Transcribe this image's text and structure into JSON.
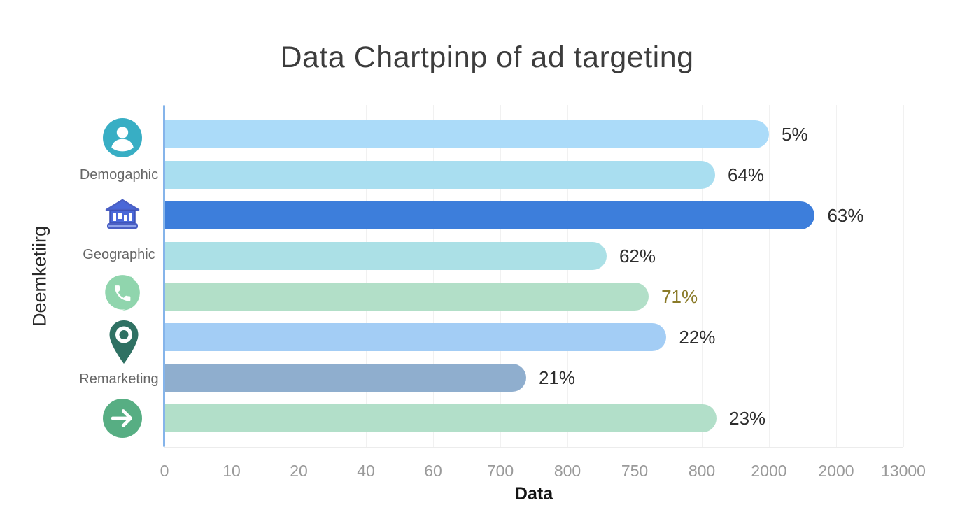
{
  "title": "Data Chartpinp of ad targeting",
  "y_axis_label": "Deemketiirg",
  "x_axis_label": "Data",
  "category_labels": [
    {
      "label": "Demogaphic"
    },
    {
      "label": "Geographic"
    },
    {
      "label": "Remarketing"
    }
  ],
  "icons": [
    {
      "name": "person-icon",
      "color": "#38aec4"
    },
    {
      "name": "bank-icon",
      "color": "#4a68d8"
    },
    {
      "name": "phone-chat-icon",
      "color": "#90d5ad"
    },
    {
      "name": "location-pin-icon",
      "color": "#2f7163"
    },
    {
      "name": "arrow-right-icon",
      "color": "#57ae83"
    }
  ],
  "chart_data": {
    "type": "bar",
    "orientation": "horizontal",
    "title": "Data Chartpinp of ad targeting",
    "xlabel": "Data",
    "ylabel": "Deemketiirg",
    "grid": true,
    "axis_line_color": "#85b4ea",
    "x_tick_labels": [
      "0",
      "10",
      "20",
      "40",
      "60",
      "700",
      "800",
      "750",
      "800",
      "2000",
      "2000",
      "13000"
    ],
    "bars": [
      {
        "value_label": "5%",
        "length_frac": 0.819,
        "color": "#abdbf9",
        "value_color": "#2e2e2e"
      },
      {
        "value_label": "64%",
        "length_frac": 0.746,
        "color": "#a9def0",
        "value_color": "#2e2e2e"
      },
      {
        "value_label": "63%",
        "length_frac": 0.881,
        "color": "#3d7edb",
        "value_color": "#2e2e2e"
      },
      {
        "value_label": "62%",
        "length_frac": 0.599,
        "color": "#abe0e6",
        "value_color": "#2e2e2e"
      },
      {
        "value_label": "71%",
        "length_frac": 0.656,
        "color": "#b2dfc8",
        "value_color": "#8a7a28"
      },
      {
        "value_label": "22%",
        "length_frac": 0.68,
        "color": "#a3cdf5",
        "value_color": "#2e2e2e"
      },
      {
        "value_label": "21%",
        "length_frac": 0.49,
        "color": "#8faece",
        "value_color": "#2e2e2e"
      },
      {
        "value_label": "23%",
        "length_frac": 0.748,
        "color": "#b2dfc9",
        "value_color": "#2e2e2e"
      }
    ]
  }
}
